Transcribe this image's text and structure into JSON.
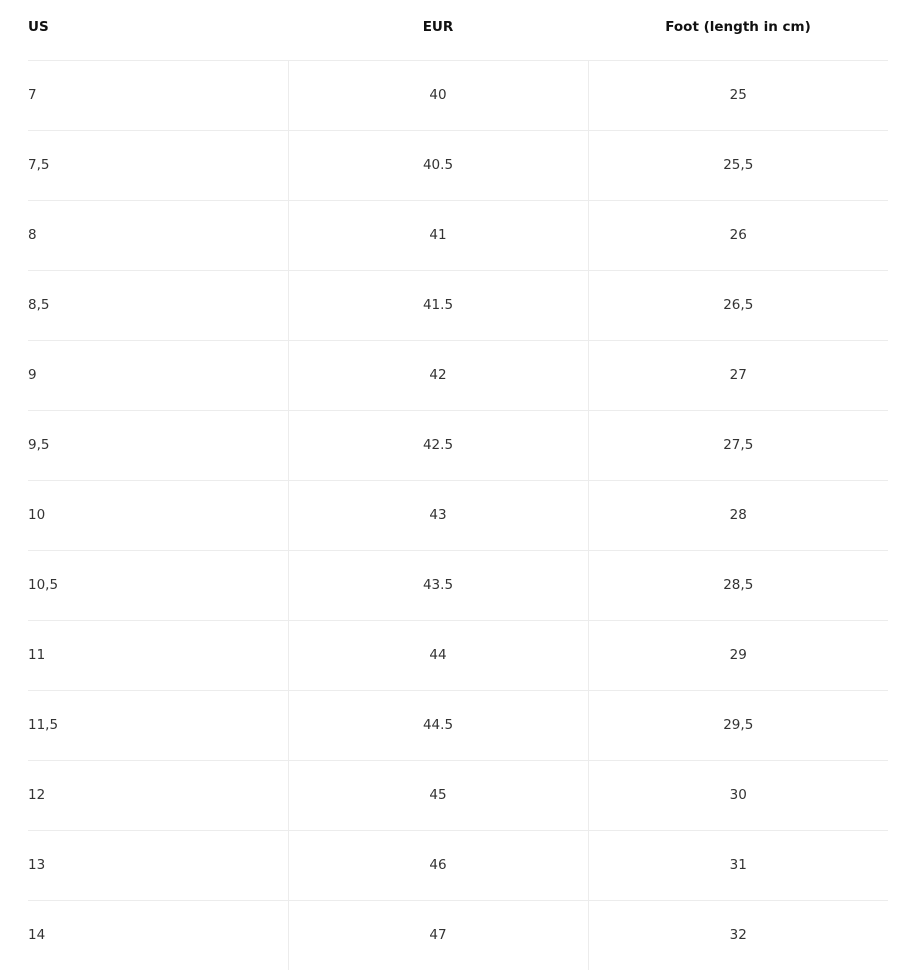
{
  "table": {
    "headers": [
      "US",
      "EUR",
      "Foot (length in cm)"
    ],
    "rows": [
      [
        "7",
        "40",
        "25"
      ],
      [
        "7,5",
        "40.5",
        "25,5"
      ],
      [
        "8",
        "41",
        "26"
      ],
      [
        "8,5",
        "41.5",
        "26,5"
      ],
      [
        "9",
        "42",
        "27"
      ],
      [
        "9,5",
        "42.5",
        "27,5"
      ],
      [
        "10",
        "43",
        "28"
      ],
      [
        "10,5",
        "43.5",
        "28,5"
      ],
      [
        "11",
        "44",
        "29"
      ],
      [
        "11,5",
        "44.5",
        "29,5"
      ],
      [
        "12",
        "45",
        "30"
      ],
      [
        "13",
        "46",
        "31"
      ],
      [
        "14",
        "47",
        "32"
      ]
    ]
  }
}
